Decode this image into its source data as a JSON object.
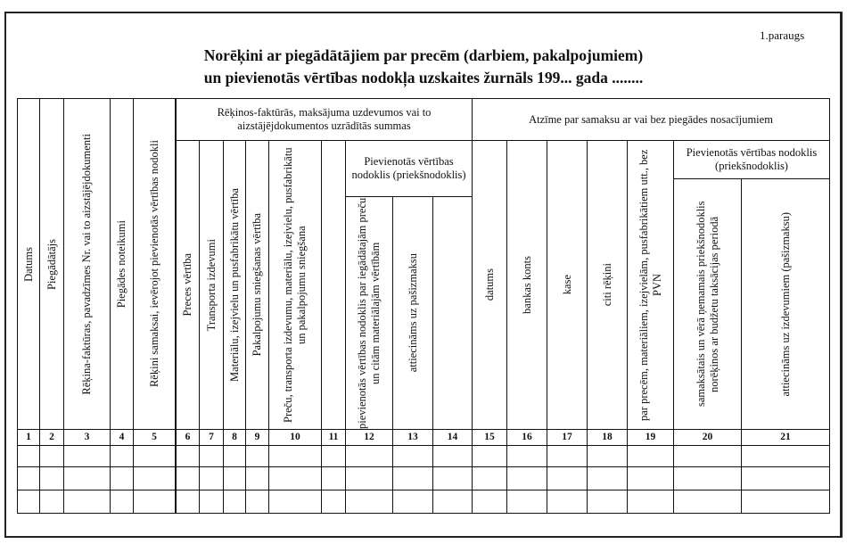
{
  "sample_label": "1.paraugs",
  "title": [
    "Norēķini ar piegādātājiem par precēm (darbiem, pakalpojumiem)",
    "un pievienotās vērtības nodokļa uzskaites žurnāls 199... gada ........"
  ],
  "table": {
    "groups": {
      "invoice_amounts": "Rēķinos-faktūrās, maksājuma uzdevumos vai to aizstājējdokumentos uzrādītās summas",
      "vat_input_left": "Pievienotās vērtības nodoklis (priekšnodoklis)",
      "payment_mark": "Atzīme par samaksu ar vai bez piegādes nosacījumiem",
      "vat_input_right": "Pievienotās vērtības nodoklis (priekšnodoklis)"
    },
    "columns": [
      {
        "number": "1",
        "label": "Datums"
      },
      {
        "number": "2",
        "label": "Piegādātājs"
      },
      {
        "number": "3",
        "label": "Rēķina-faktūras, pavadzīmes Nr. vai to aizstājējdokumenti"
      },
      {
        "number": "4",
        "label": "Piegādes noteikumi"
      },
      {
        "number": "5",
        "label": "Rēķini samaksai, ievērojot pievienotās vērtības nodokli"
      },
      {
        "number": "6",
        "label": "Preces vērtība"
      },
      {
        "number": "7",
        "label": "Transporta izdevumi"
      },
      {
        "number": "8",
        "label": "Materiālu, izejvielu un pusfabrikātu vērtība"
      },
      {
        "number": "9",
        "label": "Pakalpojumu sniegšanas vērtība"
      },
      {
        "number": "10",
        "label": "Preču, transporta izdevumu, materiālu, izejvielu, pusfabrikātu un pakalpojumu sniegšana"
      },
      {
        "number": "11"
      },
      {
        "number": "12",
        "label": "pievienotās vērtības nodoklis par iegādātajām preču un citām materiālajām vērtībām"
      },
      {
        "number": "13",
        "label": "attiecināms uz pašizmaksu"
      },
      {
        "number": "14"
      },
      {
        "number": "15",
        "label": "datums"
      },
      {
        "number": "16",
        "label": "bankas konts"
      },
      {
        "number": "17",
        "label": "kase"
      },
      {
        "number": "18",
        "label": "citi rēķini"
      },
      {
        "number": "19",
        "label": "par precēm, materiāliem, izejvielām, pusfabrikātiem utt., bez PVN"
      },
      {
        "number": "20",
        "label": "samaksātais un vērā ņemamais priekšnodoklis norēķinos ar budžetu taksācijas periodā"
      },
      {
        "number": "21",
        "label": "attiecināms uz izdevumiem (pašizmaksu)"
      }
    ]
  }
}
